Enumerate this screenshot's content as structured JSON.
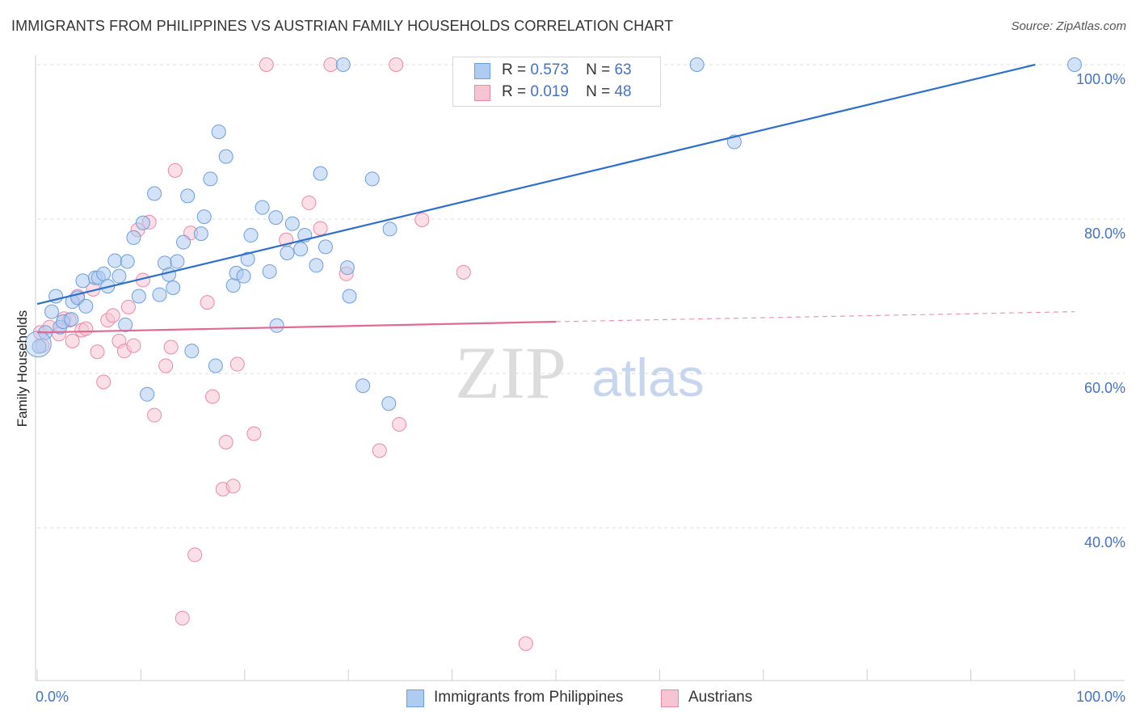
{
  "title": "IMMIGRANTS FROM PHILIPPINES VS AUSTRIAN FAMILY HOUSEHOLDS CORRELATION CHART",
  "source": "Source: ZipAtlas.com",
  "watermark": {
    "zip": "ZIP",
    "atlas": "atlas"
  },
  "legend_top": [
    {
      "r_label": "R =",
      "r_value": "0.573",
      "n_label": "N =",
      "n_value": "63"
    },
    {
      "r_label": "R =",
      "r_value": "0.019",
      "n_label": "N =",
      "n_value": "48"
    }
  ],
  "legend_bottom": [
    "Immigrants from Philippines",
    "Austrians"
  ],
  "x_axis": {
    "min_label": "0.0%",
    "max_label": "100.0%"
  },
  "colors": {
    "blue_fill": "#aecbf0",
    "blue_stroke": "#6a9fdc",
    "blue_line": "#2e6fc9",
    "pink_fill": "#f7c4d4",
    "pink_stroke": "#e88aa8",
    "pink_line": "#e06a94",
    "tick_label": "#4472c4",
    "grid": "#dddddd"
  },
  "chart_data": {
    "type": "scatter",
    "title": "IMMIGRANTS FROM PHILIPPINES VS AUSTRIAN FAMILY HOUSEHOLDS CORRELATION CHART",
    "xlabel": "",
    "ylabel": "Family Households",
    "xlim": [
      0,
      100
    ],
    "ylim": [
      20,
      102
    ],
    "y_ticks": [
      {
        "value": 40,
        "label": "40.0%"
      },
      {
        "value": 60,
        "label": "60.0%"
      },
      {
        "value": 80,
        "label": "80.0%"
      },
      {
        "value": 100,
        "label": "100.0%"
      }
    ],
    "grid": true,
    "legend_placement": "top-center",
    "series": [
      {
        "name": "Immigrants from Philippines",
        "r": 0.573,
        "n": 63,
        "trend": {
          "x": [
            0,
            96.2
          ],
          "y": [
            69.0,
            100.0
          ]
        },
        "points": [
          [
            0.2,
            63.5
          ],
          [
            0.8,
            65.3
          ],
          [
            1.4,
            68.0
          ],
          [
            1.8,
            70.0
          ],
          [
            2.2,
            66.0
          ],
          [
            2.5,
            66.7
          ],
          [
            3.3,
            67.0
          ],
          [
            3.4,
            69.3
          ],
          [
            3.9,
            69.8
          ],
          [
            4.7,
            68.7
          ],
          [
            4.4,
            72.0
          ],
          [
            5.6,
            72.4
          ],
          [
            5.9,
            72.4
          ],
          [
            6.4,
            72.9
          ],
          [
            6.8,
            71.3
          ],
          [
            7.5,
            74.6
          ],
          [
            7.9,
            72.6
          ],
          [
            8.5,
            66.3
          ],
          [
            8.7,
            74.5
          ],
          [
            9.3,
            77.6
          ],
          [
            9.8,
            70.0
          ],
          [
            10.2,
            79.5
          ],
          [
            10.6,
            57.3
          ],
          [
            11.3,
            83.3
          ],
          [
            11.8,
            70.2
          ],
          [
            12.3,
            74.3
          ],
          [
            12.7,
            72.8
          ],
          [
            13.1,
            71.1
          ],
          [
            13.5,
            74.5
          ],
          [
            14.1,
            77.0
          ],
          [
            14.5,
            83.0
          ],
          [
            14.9,
            62.9
          ],
          [
            15.8,
            78.1
          ],
          [
            16.1,
            80.3
          ],
          [
            16.7,
            85.2
          ],
          [
            17.2,
            61.0
          ],
          [
            17.5,
            91.3
          ],
          [
            18.2,
            88.1
          ],
          [
            18.9,
            71.4
          ],
          [
            19.2,
            73.0
          ],
          [
            19.9,
            72.6
          ],
          [
            20.3,
            74.8
          ],
          [
            20.6,
            77.9
          ],
          [
            21.7,
            81.5
          ],
          [
            22.4,
            73.2
          ],
          [
            23.0,
            80.2
          ],
          [
            23.1,
            66.2
          ],
          [
            24.1,
            75.6
          ],
          [
            24.6,
            79.4
          ],
          [
            25.4,
            76.1
          ],
          [
            25.8,
            77.9
          ],
          [
            26.9,
            74.0
          ],
          [
            27.3,
            85.9
          ],
          [
            27.8,
            76.4
          ],
          [
            29.5,
            100.0
          ],
          [
            29.9,
            73.7
          ],
          [
            30.1,
            70.0
          ],
          [
            31.4,
            58.4
          ],
          [
            32.3,
            85.2
          ],
          [
            33.9,
            56.1
          ],
          [
            34.0,
            78.7
          ],
          [
            63.6,
            100.0
          ],
          [
            67.2,
            90.0
          ],
          [
            100.0,
            100.0
          ]
        ]
      },
      {
        "name": "Austrians",
        "r": 0.019,
        "n": 48,
        "trend": {
          "x": [
            0,
            50.0
          ],
          "y": [
            65.3,
            66.7
          ]
        },
        "trend_dashed": {
          "x": [
            50.0,
            100.0
          ],
          "y": [
            66.7,
            68.0
          ]
        },
        "points": [
          [
            0.3,
            65.3
          ],
          [
            1.2,
            66.0
          ],
          [
            2.1,
            65.1
          ],
          [
            2.6,
            67.1
          ],
          [
            3.1,
            66.9
          ],
          [
            3.4,
            64.2
          ],
          [
            3.9,
            70.0
          ],
          [
            4.3,
            65.6
          ],
          [
            4.7,
            65.8
          ],
          [
            5.4,
            70.9
          ],
          [
            5.8,
            62.8
          ],
          [
            6.4,
            58.9
          ],
          [
            6.8,
            66.9
          ],
          [
            7.3,
            67.5
          ],
          [
            7.9,
            64.2
          ],
          [
            8.4,
            62.9
          ],
          [
            8.8,
            68.6
          ],
          [
            9.3,
            63.6
          ],
          [
            9.7,
            78.6
          ],
          [
            10.2,
            72.1
          ],
          [
            10.8,
            79.6
          ],
          [
            11.3,
            54.6
          ],
          [
            12.4,
            61.0
          ],
          [
            12.9,
            63.4
          ],
          [
            13.3,
            86.3
          ],
          [
            14.0,
            28.3
          ],
          [
            14.8,
            78.2
          ],
          [
            15.2,
            36.5
          ],
          [
            16.4,
            69.2
          ],
          [
            16.9,
            57.0
          ],
          [
            17.9,
            45.0
          ],
          [
            18.2,
            51.1
          ],
          [
            18.9,
            45.4
          ],
          [
            19.3,
            61.2
          ],
          [
            20.9,
            52.2
          ],
          [
            22.1,
            100.0
          ],
          [
            24.0,
            77.3
          ],
          [
            26.2,
            82.1
          ],
          [
            27.3,
            78.8
          ],
          [
            28.3,
            100.0
          ],
          [
            29.8,
            72.9
          ],
          [
            33.0,
            50.0
          ],
          [
            34.6,
            100.0
          ],
          [
            34.9,
            53.4
          ],
          [
            37.1,
            79.9
          ],
          [
            41.1,
            73.1
          ],
          [
            47.1,
            25.0
          ],
          [
            0.5,
            63.6
          ]
        ]
      }
    ]
  }
}
